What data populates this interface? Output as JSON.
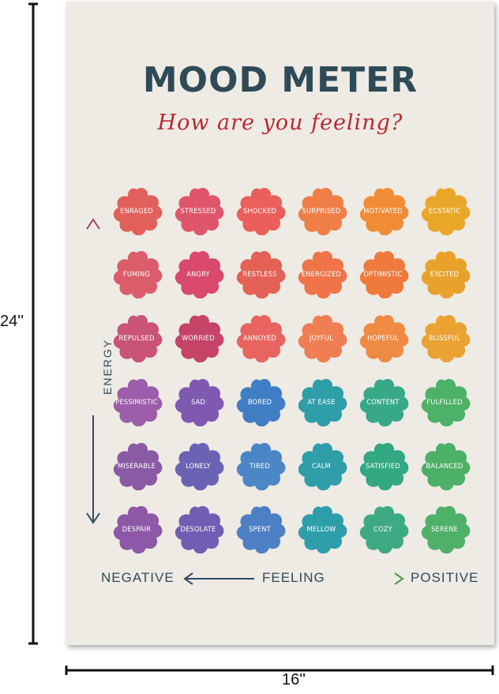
{
  "dimensions": {
    "height_label": "24''",
    "width_label": "16''"
  },
  "poster": {
    "title": "MOOD METER",
    "subtitle": "How are you feeling?",
    "y_axis_label": "ENERGY",
    "x_axis": {
      "left": "NEGATIVE",
      "center": "FEELING",
      "right": "POSITIVE"
    },
    "rows": [
      [
        "ENRAGED",
        "STRESSED",
        "SHOCKED",
        "SURPRISED",
        "MOTIVATED",
        "ECSTATIC"
      ],
      [
        "FUMING",
        "ANGRY",
        "RESTLESS",
        "ENERGIZED",
        "OPTIMISTIC",
        "EXCITED"
      ],
      [
        "REPULSED",
        "WORRIED",
        "ANNOYED",
        "JOYFUL",
        "HOPEFUL",
        "BLISSFUL"
      ],
      [
        "PESSIMISTIC",
        "SAD",
        "BORED",
        "AT EASE",
        "CONTENT",
        "FULFILLED"
      ],
      [
        "MISERABLE",
        "LONELY",
        "TIRED",
        "CALM",
        "SATISFIED",
        "BALANCED"
      ],
      [
        "DESPAIR",
        "DESOLATE",
        "SPENT",
        "MELLOW",
        "COZY",
        "SERENE"
      ]
    ],
    "colors": [
      [
        "#e2605a",
        "#df566a",
        "#ea5f5b",
        "#ef7f47",
        "#f08c36",
        "#e9a72a"
      ],
      [
        "#dc5d6a",
        "#d9496c",
        "#e36155",
        "#ef7448",
        "#ef7a3e",
        "#e8a22c"
      ],
      [
        "#c95476",
        "#c54468",
        "#e7645f",
        "#ef7e52",
        "#ef8a45",
        "#eaa232"
      ],
      [
        "#9c5daa",
        "#7f58b0",
        "#3f7ec4",
        "#2e9ea8",
        "#37a988",
        "#4db167"
      ],
      [
        "#8a5aa5",
        "#6a62b3",
        "#4b86c6",
        "#2f9ea9",
        "#32a883",
        "#4cb066"
      ],
      [
        "#8d58a7",
        "#6f5eb3",
        "#4d7fc4",
        "#2e9eab",
        "#3eaa83",
        "#4eb069"
      ]
    ]
  }
}
